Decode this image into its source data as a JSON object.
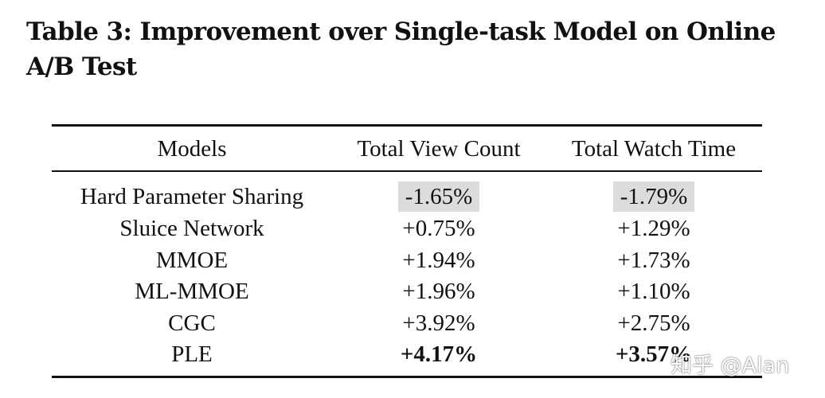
{
  "caption": "Table 3: Improvement over Single-task Model on Online A/B Test",
  "table": {
    "headers": [
      "Models",
      "Total View Count",
      "Total Watch Time"
    ],
    "rows": [
      {
        "model": "Hard Parameter Sharing",
        "view": "-1.65%",
        "watch": "-1.79%",
        "shaded": true,
        "bold": false
      },
      {
        "model": "Sluice Network",
        "view": "+0.75%",
        "watch": "+1.29%",
        "shaded": false,
        "bold": false
      },
      {
        "model": "MMOE",
        "view": "+1.94%",
        "watch": "+1.73%",
        "shaded": false,
        "bold": false
      },
      {
        "model": "ML-MMOE",
        "view": "+1.96%",
        "watch": "+1.10%",
        "shaded": false,
        "bold": false
      },
      {
        "model": "CGC",
        "view": "+3.92%",
        "watch": "+2.75%",
        "shaded": false,
        "bold": false
      },
      {
        "model": "PLE",
        "view": "+4.17%",
        "watch": "+3.57%",
        "shaded": false,
        "bold": true
      }
    ]
  },
  "watermark": "知乎 @Alan"
}
